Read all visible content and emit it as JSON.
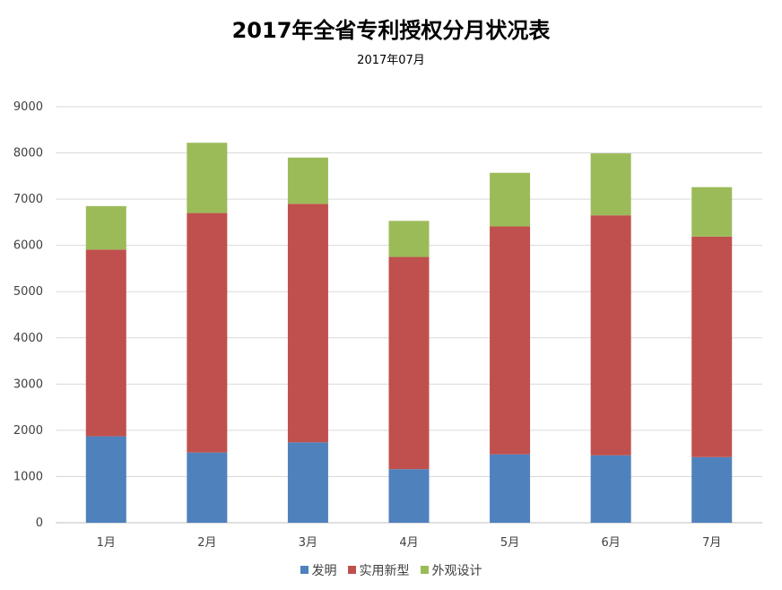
{
  "chart_data": {
    "type": "bar",
    "stacked": true,
    "title": "2017年全省专利授权分月状况表",
    "subtitle": "2017年07月",
    "xlabel": "",
    "ylabel": "",
    "categories": [
      "1月",
      "2月",
      "3月",
      "4月",
      "5月",
      "6月",
      "7月"
    ],
    "series": [
      {
        "name": "发明",
        "color": "#4F81BD",
        "values": [
          1870,
          1520,
          1740,
          1160,
          1480,
          1460,
          1420
        ]
      },
      {
        "name": "实用新型",
        "color": "#C0504D",
        "values": [
          4040,
          5180,
          5160,
          4590,
          4930,
          5190,
          4770
        ]
      },
      {
        "name": "外观设计",
        "color": "#9BBB59",
        "values": [
          940,
          1520,
          1000,
          780,
          1160,
          1340,
          1070
        ]
      }
    ],
    "ylim": [
      0,
      9000
    ],
    "yticks": [
      0,
      1000,
      2000,
      3000,
      4000,
      5000,
      6000,
      7000,
      8000,
      9000
    ],
    "grid": true,
    "legend_position": "bottom"
  }
}
